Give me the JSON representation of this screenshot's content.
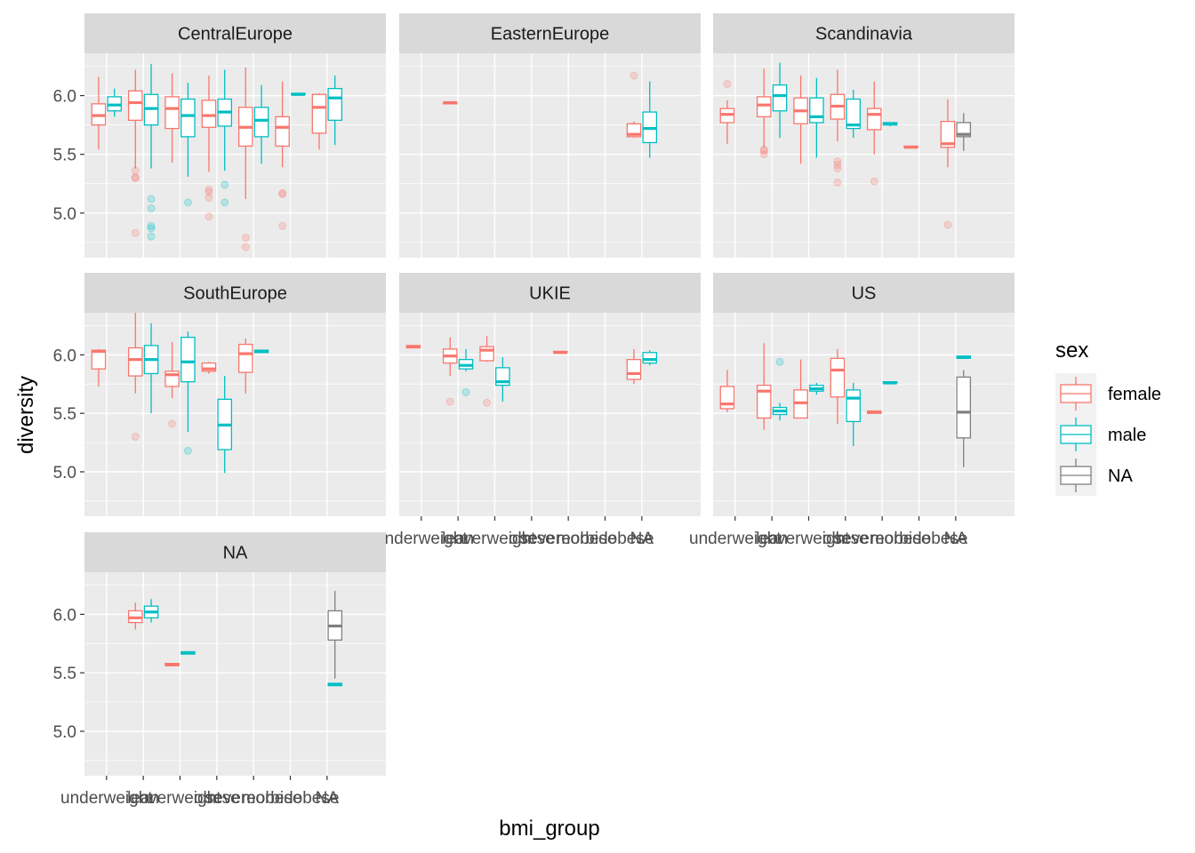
{
  "chart_data": {
    "type": "boxplot",
    "xlabel": "bmi_group",
    "ylabel": "diversity",
    "categories": [
      "underweight",
      "lean",
      "overweight",
      "obese",
      "severeobese",
      "morbidobese",
      "NA"
    ],
    "y_ticks": [
      5.0,
      5.5,
      6.0
    ],
    "ylim": [
      4.62,
      6.36
    ],
    "grid": true,
    "legend": {
      "title": "sex",
      "placement": "right",
      "entries": [
        {
          "name": "female",
          "color": "#F8766D"
        },
        {
          "name": "male",
          "color": "#00BFC4"
        },
        {
          "name": "NA",
          "color": "#7F7F7F"
        }
      ]
    },
    "facets": [
      {
        "name": "CentralEurope",
        "boxes": [
          {
            "cat": 0,
            "sex": "female",
            "lo": 5.54,
            "q1": 5.75,
            "med": 5.83,
            "q3": 5.93,
            "hi": 6.16,
            "outliers": []
          },
          {
            "cat": 0,
            "sex": "male",
            "lo": 5.82,
            "q1": 5.87,
            "med": 5.92,
            "q3": 5.99,
            "hi": 6.06,
            "outliers": []
          },
          {
            "cat": 1,
            "sex": "female",
            "lo": 5.38,
            "q1": 5.79,
            "med": 5.94,
            "q3": 6.04,
            "hi": 6.22,
            "outliers": [
              5.36,
              5.3,
              5.3,
              4.83
            ]
          },
          {
            "cat": 1,
            "sex": "male",
            "lo": 5.38,
            "q1": 5.75,
            "med": 5.89,
            "q3": 6.01,
            "hi": 6.27,
            "outliers": [
              5.12,
              5.04,
              4.89,
              4.87,
              4.8
            ]
          },
          {
            "cat": 2,
            "sex": "female",
            "lo": 5.43,
            "q1": 5.72,
            "med": 5.89,
            "q3": 5.99,
            "hi": 6.19,
            "outliers": []
          },
          {
            "cat": 2,
            "sex": "male",
            "lo": 5.31,
            "q1": 5.65,
            "med": 5.83,
            "q3": 5.97,
            "hi": 6.11,
            "outliers": [
              5.09
            ]
          },
          {
            "cat": 3,
            "sex": "female",
            "lo": 5.35,
            "q1": 5.73,
            "med": 5.83,
            "q3": 5.96,
            "hi": 6.17,
            "outliers": [
              5.2,
              5.18,
              5.13,
              4.97
            ]
          },
          {
            "cat": 3,
            "sex": "male",
            "lo": 5.36,
            "q1": 5.74,
            "med": 5.86,
            "q3": 5.97,
            "hi": 6.22,
            "outliers": [
              5.24,
              5.09
            ]
          },
          {
            "cat": 4,
            "sex": "female",
            "lo": 5.12,
            "q1": 5.57,
            "med": 5.73,
            "q3": 5.9,
            "hi": 6.24,
            "outliers": [
              4.79,
              4.71
            ]
          },
          {
            "cat": 4,
            "sex": "male",
            "lo": 5.42,
            "q1": 5.65,
            "med": 5.79,
            "q3": 5.9,
            "hi": 6.09,
            "outliers": []
          },
          {
            "cat": 5,
            "sex": "female",
            "lo": 5.39,
            "q1": 5.57,
            "med": 5.73,
            "q3": 5.82,
            "hi": 6.12,
            "outliers": [
              5.17,
              5.16,
              4.89
            ]
          },
          {
            "cat": 5,
            "sex": "male",
            "lo": 6.01,
            "q1": 6.01,
            "med": 6.01,
            "q3": 6.02,
            "hi": 6.02,
            "outliers": []
          },
          {
            "cat": 6,
            "sex": "female",
            "lo": 5.54,
            "q1": 5.68,
            "med": 5.9,
            "q3": 6.01,
            "hi": 6.02,
            "outliers": []
          },
          {
            "cat": 6,
            "sex": "male",
            "lo": 5.58,
            "q1": 5.79,
            "med": 5.98,
            "q3": 6.06,
            "hi": 6.17,
            "outliers": []
          }
        ]
      },
      {
        "name": "EasternEurope",
        "boxes": [
          {
            "cat": 1,
            "sex": "female",
            "lo": 5.93,
            "q1": 5.93,
            "med": 5.94,
            "q3": 5.94,
            "hi": 5.94,
            "outliers": []
          },
          {
            "cat": 6,
            "sex": "female",
            "lo": 5.64,
            "q1": 5.65,
            "med": 5.67,
            "q3": 5.76,
            "hi": 5.78,
            "outliers": [
              6.17
            ]
          },
          {
            "cat": 6,
            "sex": "male",
            "lo": 5.47,
            "q1": 5.6,
            "med": 5.72,
            "q3": 5.86,
            "hi": 6.12,
            "outliers": []
          }
        ]
      },
      {
        "name": "Scandinavia",
        "boxes": [
          {
            "cat": 0,
            "sex": "female",
            "lo": 5.59,
            "q1": 5.77,
            "med": 5.84,
            "q3": 5.89,
            "hi": 5.96,
            "outliers": [
              6.1
            ]
          },
          {
            "cat": 1,
            "sex": "female",
            "lo": 5.56,
            "q1": 5.82,
            "med": 5.92,
            "q3": 5.99,
            "hi": 6.23,
            "outliers": [
              5.54,
              5.53,
              5.5
            ]
          },
          {
            "cat": 1,
            "sex": "male",
            "lo": 5.64,
            "q1": 5.87,
            "med": 6.0,
            "q3": 6.09,
            "hi": 6.28,
            "outliers": []
          },
          {
            "cat": 2,
            "sex": "female",
            "lo": 5.42,
            "q1": 5.76,
            "med": 5.87,
            "q3": 5.98,
            "hi": 6.17,
            "outliers": []
          },
          {
            "cat": 2,
            "sex": "male",
            "lo": 5.47,
            "q1": 5.77,
            "med": 5.82,
            "q3": 5.98,
            "hi": 6.15,
            "outliers": []
          },
          {
            "cat": 3,
            "sex": "female",
            "lo": 5.61,
            "q1": 5.8,
            "med": 5.91,
            "q3": 6.01,
            "hi": 6.22,
            "outliers": [
              5.44,
              5.41,
              5.38,
              5.26
            ]
          },
          {
            "cat": 3,
            "sex": "male",
            "lo": 5.64,
            "q1": 5.72,
            "med": 5.75,
            "q3": 5.97,
            "hi": 6.05,
            "outliers": []
          },
          {
            "cat": 4,
            "sex": "female",
            "lo": 5.5,
            "q1": 5.71,
            "med": 5.84,
            "q3": 5.89,
            "hi": 6.12,
            "outliers": [
              5.27
            ]
          },
          {
            "cat": 4,
            "sex": "male",
            "lo": 5.74,
            "q1": 5.75,
            "med": 5.76,
            "q3": 5.77,
            "hi": 5.77,
            "outliers": []
          },
          {
            "cat": 5,
            "sex": "female",
            "lo": 5.55,
            "q1": 5.56,
            "med": 5.56,
            "q3": 5.57,
            "hi": 5.57,
            "outliers": []
          },
          {
            "cat": 6,
            "sex": "female",
            "lo": 5.39,
            "q1": 5.56,
            "med": 5.59,
            "q3": 5.78,
            "hi": 5.97,
            "outliers": [
              4.9
            ]
          },
          {
            "cat": 6,
            "sex": "NA",
            "lo": 5.53,
            "q1": 5.65,
            "med": 5.67,
            "q3": 5.77,
            "hi": 5.85,
            "outliers": []
          }
        ]
      },
      {
        "name": "SouthEurope",
        "boxes": [
          {
            "cat": 0,
            "sex": "female",
            "lo": 5.73,
            "q1": 5.88,
            "med": 6.03,
            "q3": 6.04,
            "hi": 6.05,
            "outliers": []
          },
          {
            "cat": 1,
            "sex": "female",
            "lo": 5.67,
            "q1": 5.82,
            "med": 5.96,
            "q3": 6.06,
            "hi": 6.36,
            "outliers": [
              5.3
            ]
          },
          {
            "cat": 1,
            "sex": "male",
            "lo": 5.5,
            "q1": 5.84,
            "med": 5.96,
            "q3": 6.08,
            "hi": 6.27,
            "outliers": []
          },
          {
            "cat": 2,
            "sex": "female",
            "lo": 5.63,
            "q1": 5.73,
            "med": 5.83,
            "q3": 5.86,
            "hi": 6.11,
            "outliers": [
              5.41
            ]
          },
          {
            "cat": 2,
            "sex": "male",
            "lo": 5.34,
            "q1": 5.77,
            "med": 5.94,
            "q3": 6.15,
            "hi": 6.2,
            "outliers": [
              5.18
            ]
          },
          {
            "cat": 3,
            "sex": "female",
            "lo": 5.84,
            "q1": 5.86,
            "med": 5.88,
            "q3": 5.93,
            "hi": 5.94,
            "outliers": []
          },
          {
            "cat": 3,
            "sex": "male",
            "lo": 4.99,
            "q1": 5.19,
            "med": 5.4,
            "q3": 5.62,
            "hi": 5.82,
            "outliers": []
          },
          {
            "cat": 4,
            "sex": "female",
            "lo": 5.67,
            "q1": 5.85,
            "med": 6.01,
            "q3": 6.09,
            "hi": 6.14,
            "outliers": []
          },
          {
            "cat": 4,
            "sex": "male",
            "lo": 6.02,
            "q1": 6.02,
            "med": 6.03,
            "q3": 6.04,
            "hi": 6.04,
            "outliers": []
          }
        ]
      },
      {
        "name": "UKIE",
        "boxes": [
          {
            "cat": 0,
            "sex": "female",
            "lo": 6.06,
            "q1": 6.06,
            "med": 6.07,
            "q3": 6.08,
            "hi": 6.08,
            "outliers": []
          },
          {
            "cat": 1,
            "sex": "female",
            "lo": 5.82,
            "q1": 5.93,
            "med": 5.99,
            "q3": 6.05,
            "hi": 6.15,
            "outliers": [
              5.6
            ]
          },
          {
            "cat": 1,
            "sex": "male",
            "lo": 5.86,
            "q1": 5.88,
            "med": 5.91,
            "q3": 5.96,
            "hi": 6.05,
            "outliers": [
              5.68
            ]
          },
          {
            "cat": 2,
            "sex": "female",
            "lo": 5.94,
            "q1": 5.95,
            "med": 6.04,
            "q3": 6.07,
            "hi": 6.16,
            "outliers": [
              5.59
            ]
          },
          {
            "cat": 2,
            "sex": "male",
            "lo": 5.6,
            "q1": 5.74,
            "med": 5.77,
            "q3": 5.89,
            "hi": 5.98,
            "outliers": []
          },
          {
            "cat": 4,
            "sex": "female",
            "lo": 6.02,
            "q1": 6.02,
            "med": 6.02,
            "q3": 6.03,
            "hi": 6.03,
            "outliers": []
          },
          {
            "cat": 6,
            "sex": "female",
            "lo": 5.75,
            "q1": 5.79,
            "med": 5.84,
            "q3": 5.96,
            "hi": 6.05,
            "outliers": []
          },
          {
            "cat": 6,
            "sex": "male",
            "lo": 5.91,
            "q1": 5.93,
            "med": 5.96,
            "q3": 6.02,
            "hi": 6.04,
            "outliers": []
          }
        ]
      },
      {
        "name": "US",
        "boxes": [
          {
            "cat": 0,
            "sex": "female",
            "lo": 5.51,
            "q1": 5.54,
            "med": 5.58,
            "q3": 5.73,
            "hi": 5.87,
            "outliers": []
          },
          {
            "cat": 1,
            "sex": "female",
            "lo": 5.36,
            "q1": 5.46,
            "med": 5.69,
            "q3": 5.74,
            "hi": 6.1,
            "outliers": []
          },
          {
            "cat": 1,
            "sex": "male",
            "lo": 5.44,
            "q1": 5.49,
            "med": 5.52,
            "q3": 5.55,
            "hi": 5.59,
            "outliers": [
              5.94
            ]
          },
          {
            "cat": 2,
            "sex": "female",
            "lo": 5.46,
            "q1": 5.46,
            "med": 5.59,
            "q3": 5.7,
            "hi": 5.96,
            "outliers": []
          },
          {
            "cat": 2,
            "sex": "male",
            "lo": 5.66,
            "q1": 5.69,
            "med": 5.71,
            "q3": 5.74,
            "hi": 5.76,
            "outliers": []
          },
          {
            "cat": 3,
            "sex": "female",
            "lo": 5.41,
            "q1": 5.64,
            "med": 5.87,
            "q3": 5.97,
            "hi": 6.05,
            "outliers": []
          },
          {
            "cat": 3,
            "sex": "male",
            "lo": 5.22,
            "q1": 5.43,
            "med": 5.63,
            "q3": 5.7,
            "hi": 5.76,
            "outliers": []
          },
          {
            "cat": 4,
            "sex": "female",
            "lo": 5.5,
            "q1": 5.5,
            "med": 5.51,
            "q3": 5.52,
            "hi": 5.52,
            "outliers": []
          },
          {
            "cat": 4,
            "sex": "male",
            "lo": 5.76,
            "q1": 5.76,
            "med": 5.76,
            "q3": 5.77,
            "hi": 5.77,
            "outliers": []
          },
          {
            "cat": 6,
            "sex": "male",
            "lo": 5.97,
            "q1": 5.97,
            "med": 5.98,
            "q3": 5.99,
            "hi": 5.99,
            "outliers": []
          },
          {
            "cat": 6,
            "sex": "NA",
            "lo": 5.04,
            "q1": 5.29,
            "med": 5.51,
            "q3": 5.81,
            "hi": 5.87,
            "outliers": []
          }
        ]
      },
      {
        "name": "NA",
        "boxes": [
          {
            "cat": 1,
            "sex": "female",
            "lo": 5.87,
            "q1": 5.93,
            "med": 5.97,
            "q3": 6.03,
            "hi": 6.1,
            "outliers": []
          },
          {
            "cat": 1,
            "sex": "male",
            "lo": 5.93,
            "q1": 5.97,
            "med": 6.02,
            "q3": 6.07,
            "hi": 6.13,
            "outliers": []
          },
          {
            "cat": 2,
            "sex": "female",
            "lo": 5.56,
            "q1": 5.56,
            "med": 5.57,
            "q3": 5.58,
            "hi": 5.58,
            "outliers": []
          },
          {
            "cat": 2,
            "sex": "male",
            "lo": 5.66,
            "q1": 5.66,
            "med": 5.67,
            "q3": 5.68,
            "hi": 5.68,
            "outliers": []
          },
          {
            "cat": 6,
            "sex": "male",
            "lo": 5.39,
            "q1": 5.39,
            "med": 5.4,
            "q3": 5.41,
            "hi": 5.41,
            "outliers": []
          },
          {
            "cat": 6,
            "sex": "NA",
            "lo": 5.45,
            "q1": 5.78,
            "med": 5.9,
            "q3": 6.03,
            "hi": 6.2,
            "outliers": []
          }
        ]
      }
    ]
  }
}
